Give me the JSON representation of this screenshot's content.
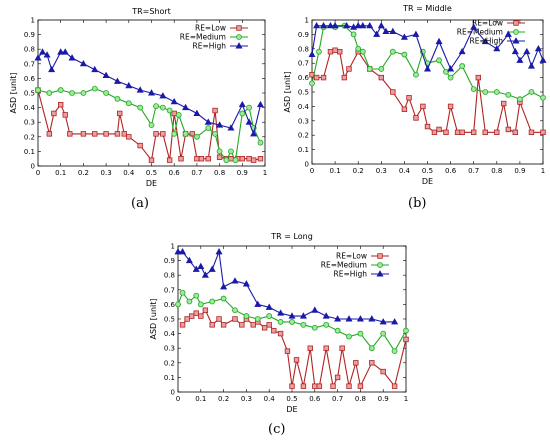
{
  "chart_data": [
    {
      "type": "line",
      "title": "TR=Short",
      "xlabel": "DE",
      "ylabel": "ASD [unit]",
      "xlim": [
        0,
        1
      ],
      "ylim": [
        0,
        1
      ],
      "xticks": [
        "0",
        "0.1",
        "0.2",
        "0.3",
        "0.4",
        "0.5",
        "0.6",
        "0.7",
        "0.8",
        "0.9",
        "1"
      ],
      "yticks": [
        "0",
        "0.1",
        "0.2",
        "0.3",
        "0.4",
        "0.5",
        "0.6",
        "0.7",
        "0.8",
        "0.9",
        "1"
      ],
      "legend_position": "top-right",
      "sublabel": "(a)",
      "series": [
        {
          "name": "RE=Low",
          "marker": "square",
          "color": "#b22222",
          "x": [
            0.0,
            0.05,
            0.07,
            0.1,
            0.12,
            0.14,
            0.2,
            0.25,
            0.3,
            0.35,
            0.36,
            0.38,
            0.4,
            0.45,
            0.5,
            0.52,
            0.55,
            0.58,
            0.6,
            0.63,
            0.65,
            0.68,
            0.7,
            0.72,
            0.75,
            0.78,
            0.8,
            0.83,
            0.85,
            0.88,
            0.9,
            0.93,
            0.95,
            0.98
          ],
          "y": [
            0.52,
            0.22,
            0.36,
            0.42,
            0.35,
            0.22,
            0.22,
            0.22,
            0.22,
            0.22,
            0.36,
            0.22,
            0.2,
            0.14,
            0.04,
            0.22,
            0.22,
            0.04,
            0.36,
            0.05,
            0.22,
            0.22,
            0.05,
            0.05,
            0.05,
            0.38,
            0.06,
            0.05,
            0.05,
            0.05,
            0.05,
            0.05,
            0.04,
            0.05
          ]
        },
        {
          "name": "RE=Medium",
          "marker": "circle",
          "color": "#22aa22",
          "x": [
            0.0,
            0.05,
            0.1,
            0.15,
            0.2,
            0.25,
            0.3,
            0.35,
            0.4,
            0.45,
            0.5,
            0.52,
            0.55,
            0.58,
            0.6,
            0.62,
            0.65,
            0.7,
            0.75,
            0.78,
            0.8,
            0.83,
            0.85,
            0.87,
            0.9,
            0.93,
            0.95,
            0.98
          ],
          "y": [
            0.52,
            0.5,
            0.52,
            0.5,
            0.5,
            0.53,
            0.5,
            0.46,
            0.43,
            0.4,
            0.28,
            0.41,
            0.4,
            0.38,
            0.22,
            0.35,
            0.22,
            0.2,
            0.26,
            0.22,
            0.1,
            0.04,
            0.1,
            0.04,
            0.36,
            0.4,
            0.26,
            0.16
          ]
        },
        {
          "name": "RE=High",
          "marker": "triangle",
          "color": "#1a1aa8",
          "x": [
            0.0,
            0.02,
            0.04,
            0.06,
            0.1,
            0.12,
            0.15,
            0.2,
            0.25,
            0.3,
            0.35,
            0.4,
            0.45,
            0.5,
            0.55,
            0.6,
            0.65,
            0.7,
            0.75,
            0.8,
            0.85,
            0.9,
            0.93,
            0.95,
            0.98
          ],
          "y": [
            0.74,
            0.78,
            0.76,
            0.66,
            0.78,
            0.78,
            0.74,
            0.7,
            0.66,
            0.62,
            0.58,
            0.55,
            0.52,
            0.5,
            0.48,
            0.44,
            0.4,
            0.36,
            0.3,
            0.28,
            0.26,
            0.42,
            0.3,
            0.22,
            0.42
          ]
        }
      ]
    },
    {
      "type": "line",
      "title": "TR = Middle",
      "xlabel": "DE",
      "ylabel": "ASD [unit]",
      "xlim": [
        0,
        1
      ],
      "ylim": [
        0,
        1
      ],
      "xticks": [
        "0",
        "0.1",
        "0.2",
        "0.3",
        "0.4",
        "0.5",
        "0.6",
        "0.7",
        "0.8",
        "0.9",
        "1"
      ],
      "yticks": [
        "0",
        "0.1",
        "0.2",
        "0.3",
        "0.4",
        "0.5",
        "0.6",
        "0.7",
        "0.8",
        "0.9",
        "1"
      ],
      "legend_position": "top-right",
      "sublabel": "(b)",
      "series": [
        {
          "name": "RE=Low",
          "marker": "square",
          "color": "#b22222",
          "x": [
            0.0,
            0.02,
            0.05,
            0.08,
            0.1,
            0.12,
            0.14,
            0.16,
            0.2,
            0.25,
            0.3,
            0.35,
            0.4,
            0.42,
            0.45,
            0.48,
            0.5,
            0.53,
            0.55,
            0.58,
            0.6,
            0.63,
            0.65,
            0.7,
            0.72,
            0.75,
            0.8,
            0.83,
            0.85,
            0.88,
            0.9,
            0.95,
            1.0
          ],
          "y": [
            0.62,
            0.6,
            0.6,
            0.78,
            0.79,
            0.78,
            0.6,
            0.66,
            0.78,
            0.66,
            0.6,
            0.5,
            0.38,
            0.46,
            0.32,
            0.4,
            0.26,
            0.22,
            0.24,
            0.22,
            0.4,
            0.22,
            0.22,
            0.22,
            0.6,
            0.22,
            0.22,
            0.42,
            0.24,
            0.22,
            0.43,
            0.22,
            0.22
          ]
        },
        {
          "name": "RE=Medium",
          "marker": "circle",
          "color": "#22aa22",
          "x": [
            0.0,
            0.03,
            0.05,
            0.1,
            0.14,
            0.18,
            0.2,
            0.22,
            0.25,
            0.3,
            0.35,
            0.4,
            0.45,
            0.48,
            0.5,
            0.55,
            0.58,
            0.6,
            0.65,
            0.7,
            0.75,
            0.8,
            0.85,
            0.9,
            0.95,
            1.0
          ],
          "y": [
            0.56,
            0.78,
            0.95,
            0.95,
            0.96,
            0.9,
            0.8,
            0.78,
            0.66,
            0.66,
            0.78,
            0.76,
            0.62,
            0.78,
            0.7,
            0.72,
            0.64,
            0.6,
            0.68,
            0.52,
            0.5,
            0.5,
            0.48,
            0.45,
            0.5,
            0.46
          ]
        },
        {
          "name": "RE=High",
          "marker": "triangle",
          "color": "#1a1aa8",
          "x": [
            0.0,
            0.02,
            0.05,
            0.08,
            0.1,
            0.15,
            0.18,
            0.2,
            0.22,
            0.25,
            0.28,
            0.3,
            0.32,
            0.35,
            0.4,
            0.45,
            0.5,
            0.55,
            0.6,
            0.65,
            0.7,
            0.75,
            0.8,
            0.85,
            0.88,
            0.9,
            0.93,
            0.95,
            0.98,
            1.0
          ],
          "y": [
            0.76,
            0.96,
            0.96,
            0.96,
            0.96,
            0.96,
            0.95,
            0.96,
            0.96,
            0.96,
            0.9,
            0.96,
            0.92,
            0.92,
            0.88,
            0.9,
            0.66,
            0.85,
            0.66,
            0.78,
            0.95,
            0.85,
            0.8,
            0.9,
            0.78,
            0.72,
            0.78,
            0.68,
            0.8,
            0.72
          ]
        }
      ]
    },
    {
      "type": "line",
      "title": "TR = Long",
      "xlabel": "DE",
      "ylabel": "ASD [unit]",
      "xlim": [
        0,
        1
      ],
      "ylim": [
        0,
        1
      ],
      "xticks": [
        "0",
        "0.1",
        "0.2",
        "0.3",
        "0.4",
        "0.5",
        "0.6",
        "0.7",
        "0.8",
        "0.9",
        "1"
      ],
      "yticks": [
        "0",
        "0.1",
        "0.2",
        "0.3",
        "0.4",
        "0.5",
        "0.6",
        "0.7",
        "0.8",
        "0.9",
        "1"
      ],
      "legend_position": "top-right",
      "sublabel": "(c)",
      "series": [
        {
          "name": "RE=Low",
          "marker": "square",
          "color": "#b22222",
          "x": [
            0.02,
            0.04,
            0.06,
            0.08,
            0.1,
            0.12,
            0.15,
            0.18,
            0.2,
            0.25,
            0.28,
            0.3,
            0.33,
            0.35,
            0.38,
            0.4,
            0.42,
            0.45,
            0.48,
            0.5,
            0.52,
            0.55,
            0.58,
            0.6,
            0.62,
            0.65,
            0.68,
            0.7,
            0.72,
            0.75,
            0.78,
            0.8,
            0.85,
            0.9,
            0.95,
            1.0
          ],
          "y": [
            0.46,
            0.5,
            0.52,
            0.54,
            0.52,
            0.56,
            0.46,
            0.5,
            0.46,
            0.5,
            0.46,
            0.5,
            0.46,
            0.48,
            0.44,
            0.46,
            0.42,
            0.4,
            0.28,
            0.04,
            0.22,
            0.04,
            0.3,
            0.04,
            0.04,
            0.3,
            0.04,
            0.1,
            0.3,
            0.04,
            0.2,
            0.04,
            0.2,
            0.14,
            0.04,
            0.36
          ]
        },
        {
          "name": "RE=Medium",
          "marker": "circle",
          "color": "#22aa22",
          "x": [
            0.0,
            0.02,
            0.05,
            0.08,
            0.1,
            0.15,
            0.2,
            0.25,
            0.3,
            0.35,
            0.4,
            0.45,
            0.5,
            0.55,
            0.6,
            0.65,
            0.7,
            0.75,
            0.8,
            0.85,
            0.9,
            0.95,
            1.0
          ],
          "y": [
            0.6,
            0.68,
            0.62,
            0.66,
            0.6,
            0.62,
            0.64,
            0.56,
            0.52,
            0.5,
            0.52,
            0.48,
            0.48,
            0.46,
            0.44,
            0.46,
            0.42,
            0.38,
            0.4,
            0.3,
            0.4,
            0.28,
            0.42
          ]
        },
        {
          "name": "RE=High",
          "marker": "triangle",
          "color": "#1a1aa8",
          "x": [
            0.0,
            0.02,
            0.05,
            0.08,
            0.1,
            0.12,
            0.15,
            0.18,
            0.2,
            0.25,
            0.3,
            0.35,
            0.4,
            0.45,
            0.5,
            0.55,
            0.6,
            0.65,
            0.7,
            0.75,
            0.8,
            0.85,
            0.9,
            0.95
          ],
          "y": [
            0.96,
            0.96,
            0.9,
            0.84,
            0.86,
            0.8,
            0.84,
            0.96,
            0.72,
            0.76,
            0.74,
            0.6,
            0.58,
            0.54,
            0.52,
            0.52,
            0.56,
            0.52,
            0.5,
            0.5,
            0.5,
            0.5,
            0.48,
            0.48
          ]
        }
      ]
    }
  ]
}
